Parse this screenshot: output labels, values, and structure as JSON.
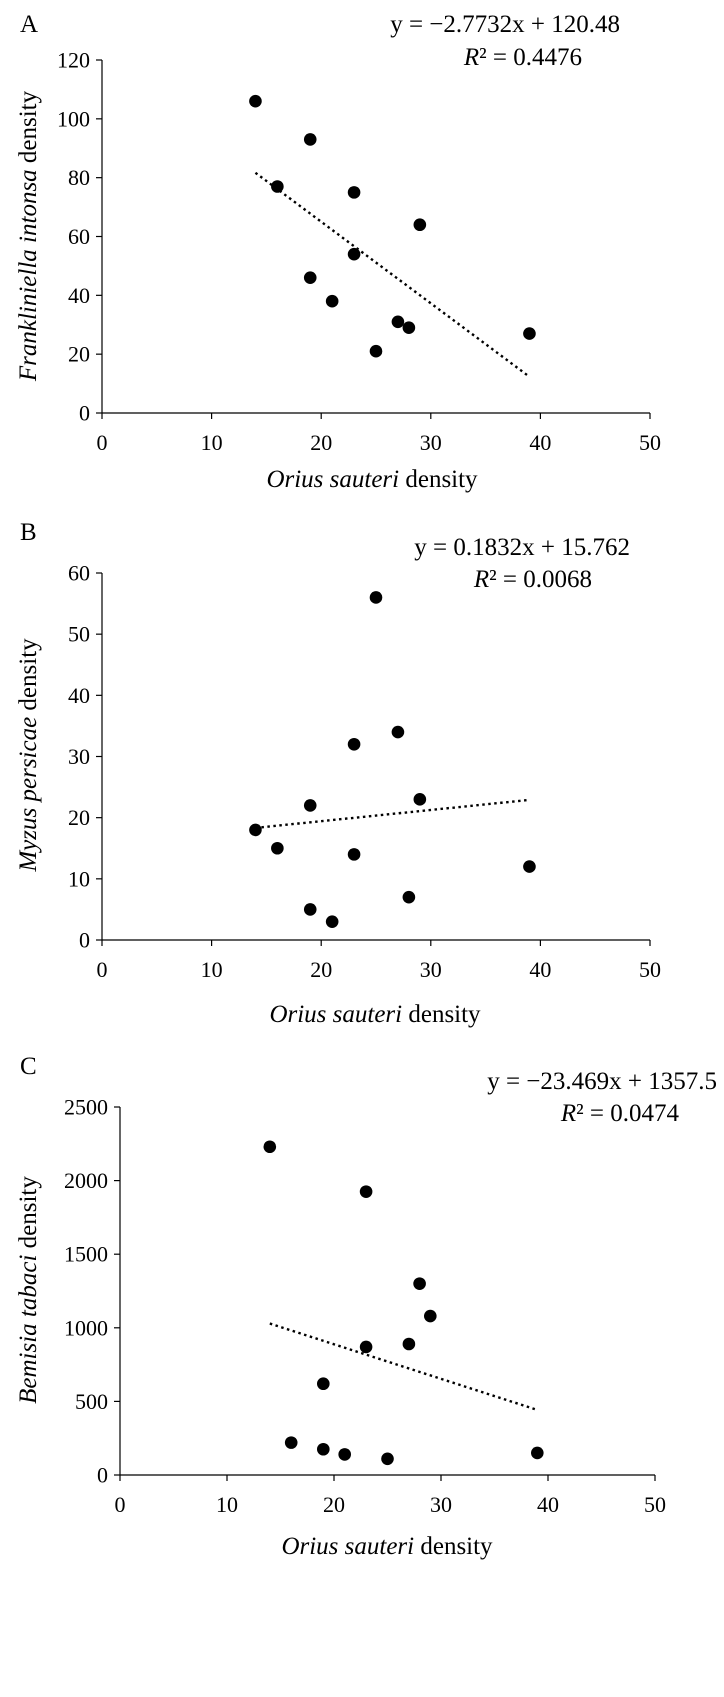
{
  "chart_data": [
    {
      "type": "scatter",
      "panel_label": "A",
      "equation": "y = −2.7732x + 120.48",
      "r2_label": "R",
      "r2_text": "² = 0.4476",
      "xlabel_species": "Orius sauteri",
      "xlabel_suffix": " density",
      "ylabel_species": "Frankliniella intonsa",
      "ylabel_suffix": " density",
      "xlim": [
        0,
        50
      ],
      "ylim": [
        0,
        120
      ],
      "xticks": [
        0,
        10,
        20,
        30,
        40,
        50
      ],
      "yticks": [
        0,
        20,
        40,
        60,
        80,
        100,
        120
      ],
      "x": [
        14,
        16,
        19,
        19,
        21,
        23,
        23,
        25,
        27,
        28,
        29,
        39
      ],
      "y": [
        106,
        77,
        93,
        46,
        38,
        75,
        54,
        21,
        31,
        29,
        64,
        27
      ],
      "trendline": {
        "slope": -2.7732,
        "intercept": 120.48,
        "x_range": [
          14,
          39
        ],
        "style": "dotted"
      }
    },
    {
      "type": "scatter",
      "panel_label": "B",
      "equation": "y = 0.1832x + 15.762",
      "r2_label": "R",
      "r2_text": "² = 0.0068",
      "xlabel_species": "Orius sauteri",
      "xlabel_suffix": " density",
      "ylabel_species": "Myzus persicae",
      "ylabel_suffix": " density",
      "xlim": [
        0,
        50
      ],
      "ylim": [
        0,
        60
      ],
      "xticks": [
        0,
        10,
        20,
        30,
        40,
        50
      ],
      "yticks": [
        0,
        10,
        20,
        30,
        40,
        50,
        60
      ],
      "x": [
        14,
        16,
        19,
        19,
        21,
        23,
        23,
        25,
        27,
        28,
        29,
        39
      ],
      "y": [
        18,
        15,
        22,
        5,
        3,
        32,
        14,
        56,
        34,
        7,
        23,
        12
      ],
      "trendline": {
        "slope": 0.1832,
        "intercept": 15.762,
        "x_range": [
          14,
          39
        ],
        "style": "dotted"
      }
    },
    {
      "type": "scatter",
      "panel_label": "C",
      "equation": "y = −23.469x + 1357.5",
      "r2_label": "R",
      "r2_text": "² = 0.0474",
      "xlabel_species": "Orius sauteri",
      "xlabel_suffix": " density",
      "ylabel_species": "Bemisia tabaci",
      "ylabel_suffix": " density",
      "xlim": [
        0,
        50
      ],
      "ylim": [
        0,
        2500
      ],
      "xticks": [
        0,
        10,
        20,
        30,
        40,
        50
      ],
      "yticks": [
        0,
        500,
        1000,
        1500,
        2000,
        2500
      ],
      "x": [
        14,
        16,
        19,
        19,
        21,
        23,
        23,
        25,
        27,
        28,
        29,
        39
      ],
      "y": [
        2230,
        220,
        620,
        175,
        140,
        1925,
        870,
        110,
        890,
        1300,
        1080,
        150
      ],
      "trendline": {
        "slope": -23.469,
        "intercept": 1357.5,
        "x_range": [
          14,
          39
        ],
        "style": "dotted"
      }
    }
  ]
}
